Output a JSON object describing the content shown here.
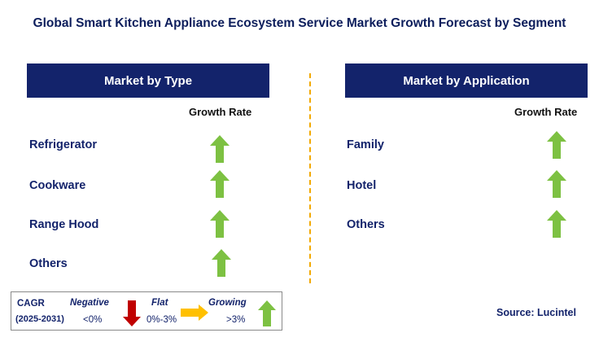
{
  "title": "Global Smart Kitchen Appliance Ecosystem Service Market Growth Forecast by Segment",
  "left_panel": {
    "header": "Market by Type",
    "growth_label": "Growth Rate",
    "rows": [
      {
        "label": "Refrigerator",
        "trend": "growing"
      },
      {
        "label": "Cookware",
        "trend": "growing"
      },
      {
        "label": "Range Hood",
        "trend": "growing"
      },
      {
        "label": "Others",
        "trend": "growing"
      }
    ]
  },
  "right_panel": {
    "header": "Market by Application",
    "growth_label": "Growth Rate",
    "rows": [
      {
        "label": "Family",
        "trend": "growing"
      },
      {
        "label": "Hotel",
        "trend": "growing"
      },
      {
        "label": "Others",
        "trend": "growing"
      }
    ]
  },
  "legend": {
    "cagr_label": "CAGR",
    "period": "(2025-2031)",
    "negative_label": "Negative",
    "negative_range": "<0%",
    "flat_label": "Flat",
    "flat_range": "0%-3%",
    "growing_label": "Growing",
    "growing_range": ">3%"
  },
  "source": "Source: Lucintel",
  "colors": {
    "header_bg": "#13236b",
    "growing": "#7dc142",
    "negative": "#c00000",
    "flat": "#ffc000",
    "divider": "#f2a900"
  }
}
